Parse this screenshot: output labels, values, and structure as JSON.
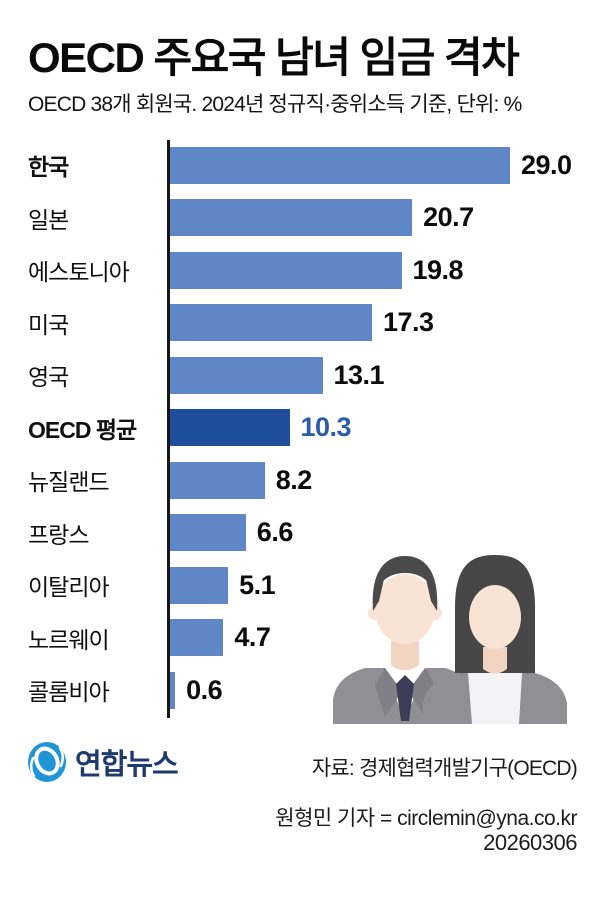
{
  "header": {
    "title": "OECD 주요국 남녀 임금 격차",
    "subtitle": "OECD 38개 회원국. 2024년 정규직·중위소득 기준, 단위: %"
  },
  "chart_data": {
    "type": "bar",
    "orientation": "horizontal",
    "title": "OECD 주요국 남녀 임금 격차",
    "unit": "%",
    "categories": [
      "한국",
      "일본",
      "에스토니아",
      "미국",
      "영국",
      "OECD 평균",
      "뉴질랜드",
      "프랑스",
      "이탈리아",
      "노르웨이",
      "콜롬비아"
    ],
    "values": [
      29.0,
      20.7,
      19.8,
      17.3,
      13.1,
      10.3,
      8.2,
      6.6,
      5.1,
      4.7,
      0.6
    ],
    "value_labels": [
      "29.0",
      "20.7",
      "19.8",
      "17.3",
      "13.1",
      "10.3",
      "8.2",
      "6.6",
      "5.1",
      "4.7",
      "0.6"
    ],
    "xlim": [
      0,
      29
    ],
    "grid": false,
    "legend": false,
    "highlight_index": 5,
    "bold_label_indices": [
      0,
      5
    ],
    "bar_color": "#5f87c7",
    "highlight_bar_color": "#1f4e9c",
    "value_color": "#0c0c0c",
    "highlight_value_color": "#2a5caa"
  },
  "footer": {
    "logo_text": "연합뉴스",
    "source": "자료: 경제협력개발기구(OECD)",
    "reporter": "원형민 기자 = circlemin@yna.co.kr",
    "date": "20260306"
  },
  "colors": {
    "logo_blue": "#2095d5",
    "logo_navy": "#1e3a6e",
    "axis": "#161616",
    "hair_gray": "#4a4a4a",
    "skin": "#f9e3d5",
    "suit_gray": "#8f8f94",
    "tie_navy": "#3e3d58"
  }
}
